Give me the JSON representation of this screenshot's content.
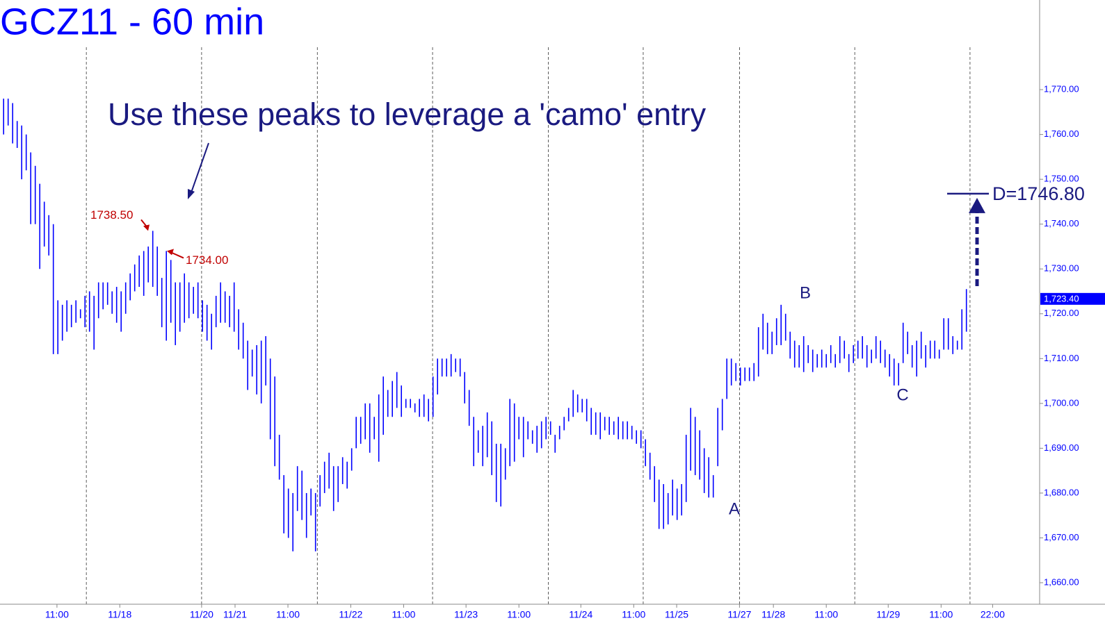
{
  "chart_data": {
    "type": "ohlc",
    "title": "GCZ11 - 60 min",
    "annotation": "Use these peaks to leverage a 'camo' entry",
    "peaks": [
      {
        "value": 1738.5,
        "label": "1738.50"
      },
      {
        "value": 1734,
        "label": "1734.00"
      }
    ],
    "points": [
      "A",
      "B",
      "C"
    ],
    "target": {
      "value": 1746.8,
      "label": "D=1746.80"
    },
    "last_price": {
      "value": 1723.4,
      "label": "1,723.40"
    },
    "color": "#0000ff",
    "ylim": [
      1655.2,
      1790
    ],
    "yticks": [
      {
        "value": 1660,
        "label": "1,660.00"
      },
      {
        "value": 1670,
        "label": "1,670.00"
      },
      {
        "value": 1680,
        "label": "1,680.00"
      },
      {
        "value": 1690,
        "label": "1,690.00"
      },
      {
        "value": 1700,
        "label": "1,700.00"
      },
      {
        "value": 1710,
        "label": "1,710.00"
      },
      {
        "value": 1720,
        "label": "1,720.00"
      },
      {
        "value": 1730,
        "label": "1,730.00"
      },
      {
        "value": 1740,
        "label": "1,740.00"
      },
      {
        "value": 1750,
        "label": "1,750.00"
      },
      {
        "value": 1760,
        "label": "1,760.00"
      },
      {
        "value": 1770,
        "label": "1,770.00"
      }
    ],
    "xlim": [
      -0.8,
      229.2
    ],
    "xticks": [
      {
        "value": 11.8,
        "label": "11:00"
      },
      {
        "value": 25.7,
        "label": "11/18"
      },
      {
        "value": 43.8,
        "label": "11/20"
      },
      {
        "value": 51.2,
        "label": "11/21"
      },
      {
        "value": 62.9,
        "label": "11:00"
      },
      {
        "value": 76.8,
        "label": "11/22"
      },
      {
        "value": 88.5,
        "label": "11:00"
      },
      {
        "value": 102.3,
        "label": "11/23"
      },
      {
        "value": 114,
        "label": "11:00"
      },
      {
        "value": 127.7,
        "label": "11/24"
      },
      {
        "value": 139.4,
        "label": "11:00"
      },
      {
        "value": 148.9,
        "label": "11/25"
      },
      {
        "value": 162.8,
        "label": "11/27"
      },
      {
        "value": 170.3,
        "label": "11/28"
      },
      {
        "value": 182,
        "label": "11:00"
      },
      {
        "value": 195.7,
        "label": "11/29"
      },
      {
        "value": 207.4,
        "label": "11:00"
      },
      {
        "value": 218.8,
        "label": "22:00"
      }
    ],
    "sessions": [
      18.3,
      43.8,
      69.4,
      94.9,
      120.5,
      141.5,
      162.8,
      188.3,
      213.8
    ],
    "high": [
      1768,
      1768,
      1767,
      1763,
      1762,
      1760,
      1756,
      1753,
      1749,
      1745,
      1742,
      1740,
      1723,
      1722,
      1723,
      1722,
      1723,
      1721,
      1724,
      1725,
      1724,
      1727,
      1727,
      1727,
      1725,
      1726,
      1725,
      1727,
      1729,
      1731,
      1733,
      1734,
      1735,
      1738.5,
      1735,
      1728,
      1734,
      1732,
      1727,
      1727,
      1729,
      1727,
      1726,
      1727,
      1723,
      1722,
      1720,
      1724,
      1727,
      1725,
      1724,
      1727,
      1721,
      1718,
      1714,
      1712,
      1713,
      1714,
      1715,
      1710,
      1706,
      1693,
      1684,
      1681,
      1680,
      1686,
      1685,
      1680,
      1681,
      1680,
      1684,
      1687,
      1689,
      1686,
      1686,
      1688,
      1687,
      1690,
      1697,
      1697,
      1700,
      1700,
      1697,
      1702,
      1706,
      1703,
      1705,
      1707,
      1704,
      1701,
      1701,
      1700,
      1701,
      1702,
      1701,
      1706,
      1710,
      1710,
      1710,
      1711,
      1710,
      1710,
      1707,
      1703,
      1697,
      1694,
      1695,
      1698,
      1696,
      1691,
      1691,
      1690,
      1701,
      1700,
      1697,
      1697,
      1696,
      1694,
      1695,
      1696,
      1697,
      1696,
      1693,
      1695,
      1697,
      1699,
      1703,
      1702,
      1701,
      1701,
      1699,
      1698,
      1698,
      1697,
      1697,
      1696,
      1697,
      1696,
      1696,
      1695,
      1694,
      1694,
      1692,
      1689,
      1686,
      1683,
      1682,
      1680,
      1683,
      1681,
      1682,
      1693,
      1699,
      1697,
      1694,
      1690,
      1688,
      1684,
      1699,
      1701,
      1710,
      1710,
      1709,
      1708,
      1708,
      1708,
      1709,
      1717,
      1720,
      1718,
      1716,
      1719,
      1722,
      1720,
      1716,
      1714,
      1713,
      1715,
      1713,
      1712,
      1711,
      1712,
      1711,
      1713,
      1711,
      1715,
      1714,
      1711,
      1713,
      1714,
      1715,
      1713,
      1712,
      1715,
      1714,
      1712,
      1711,
      1710,
      1709,
      1718,
      1716,
      1713,
      1714,
      1716,
      1713,
      1714,
      1714,
      1712,
      1719,
      1719,
      1715,
      1714,
      1721,
      1725.5
    ],
    "low": [
      1760,
      1762,
      1758,
      1757,
      1750,
      1752,
      1740,
      1740,
      1730,
      1735,
      1733,
      1711,
      1711,
      1714,
      1716,
      1717,
      1718,
      1719,
      1717,
      1716,
      1712,
      1719,
      1721,
      1722,
      1720,
      1718,
      1716,
      1720,
      1723,
      1725,
      1726,
      1724,
      1727,
      1726,
      1724,
      1717,
      1714,
      1718,
      1713,
      1716,
      1718,
      1719,
      1720,
      1719,
      1716,
      1714,
      1712,
      1717,
      1718,
      1718,
      1717,
      1716,
      1712,
      1710,
      1703,
      1706,
      1702,
      1700,
      1704,
      1692,
      1686,
      1683,
      1671,
      1670,
      1667,
      1676,
      1674,
      1670,
      1675,
      1667,
      1677,
      1680,
      1681,
      1676,
      1678,
      1682,
      1681,
      1685,
      1690,
      1691,
      1692,
      1689,
      1692,
      1687,
      1693,
      1697,
      1697,
      1699,
      1697,
      1699,
      1699,
      1698,
      1697,
      1697,
      1696,
      1697,
      1702,
      1706,
      1706,
      1706,
      1707,
      1706,
      1700,
      1695,
      1686,
      1689,
      1686,
      1688,
      1684,
      1678,
      1677,
      1683,
      1686,
      1687,
      1692,
      1688,
      1692,
      1691,
      1689,
      1690,
      1692,
      1693,
      1689,
      1692,
      1694,
      1696,
      1697,
      1698,
      1698,
      1696,
      1693,
      1693,
      1692,
      1694,
      1693,
      1693,
      1692,
      1692,
      1692,
      1692,
      1691,
      1690,
      1686,
      1683,
      1678,
      1672,
      1672,
      1673,
      1675,
      1674,
      1675,
      1678,
      1685,
      1684,
      1683,
      1680,
      1679,
      1679,
      1686,
      1694,
      1701,
      1704,
      1705,
      1704,
      1705,
      1705,
      1705,
      1706,
      1712,
      1711,
      1711,
      1713,
      1713,
      1714,
      1710,
      1708,
      1708,
      1707,
      1709,
      1707,
      1708,
      1708,
      1708,
      1709,
      1708,
      1709,
      1710,
      1707,
      1709,
      1710,
      1710,
      1708,
      1709,
      1710,
      1709,
      1708,
      1706,
      1704,
      1704,
      1709,
      1711,
      1708,
      1706,
      1710,
      1708,
      1710,
      1710,
      1710,
      1712,
      1712,
      1711,
      1712,
      1712,
      1716
    ]
  }
}
